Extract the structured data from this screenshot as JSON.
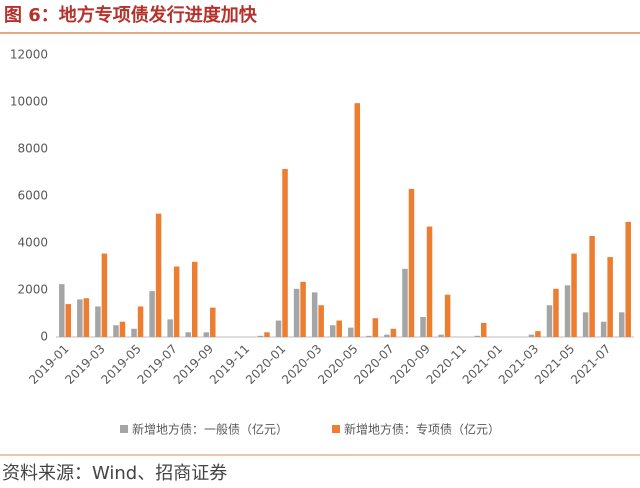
{
  "chart_data": {
    "type": "bar",
    "title": "图 6：地方专项债发行进度加快",
    "source": "资料来源：Wind、招商证券",
    "categories": [
      "2019-01",
      null,
      "2019-03",
      null,
      "2019-05",
      null,
      "2019-07",
      null,
      "2019-09",
      null,
      "2019-11",
      null,
      "2020-01",
      null,
      "2020-03",
      null,
      "2020-05",
      null,
      "2020-07",
      null,
      "2020-09",
      null,
      "2020-11",
      null,
      "2021-01",
      null,
      "2021-03",
      null,
      "2021-05",
      null,
      "2021-07",
      null
    ],
    "series": [
      {
        "name": "新增地方债：一般债（亿元）",
        "color": "#a5a5a5",
        "values": [
          2250,
          1600,
          1300,
          500,
          350,
          1950,
          750,
          200,
          200,
          0,
          0,
          50,
          700,
          2050,
          1900,
          500,
          400,
          50,
          100,
          2900,
          850,
          100,
          0,
          50,
          0,
          0,
          100,
          1350,
          2200,
          1050,
          650,
          1050
        ]
      },
      {
        "name": "新增地方债：专项债（亿元）",
        "color": "#ed7d31",
        "values": [
          1400,
          1650,
          3550,
          650,
          1300,
          5250,
          3000,
          3200,
          1250,
          0,
          0,
          200,
          7150,
          2350,
          1350,
          700,
          9950,
          800,
          350,
          6300,
          4700,
          1800,
          0,
          600,
          0,
          0,
          250,
          2050,
          3550,
          4300,
          3400,
          4900
        ]
      }
    ],
    "ylim": [
      0,
      12000
    ],
    "yticks": [
      0,
      2000,
      4000,
      6000,
      8000,
      10000,
      12000
    ],
    "grid": false
  }
}
